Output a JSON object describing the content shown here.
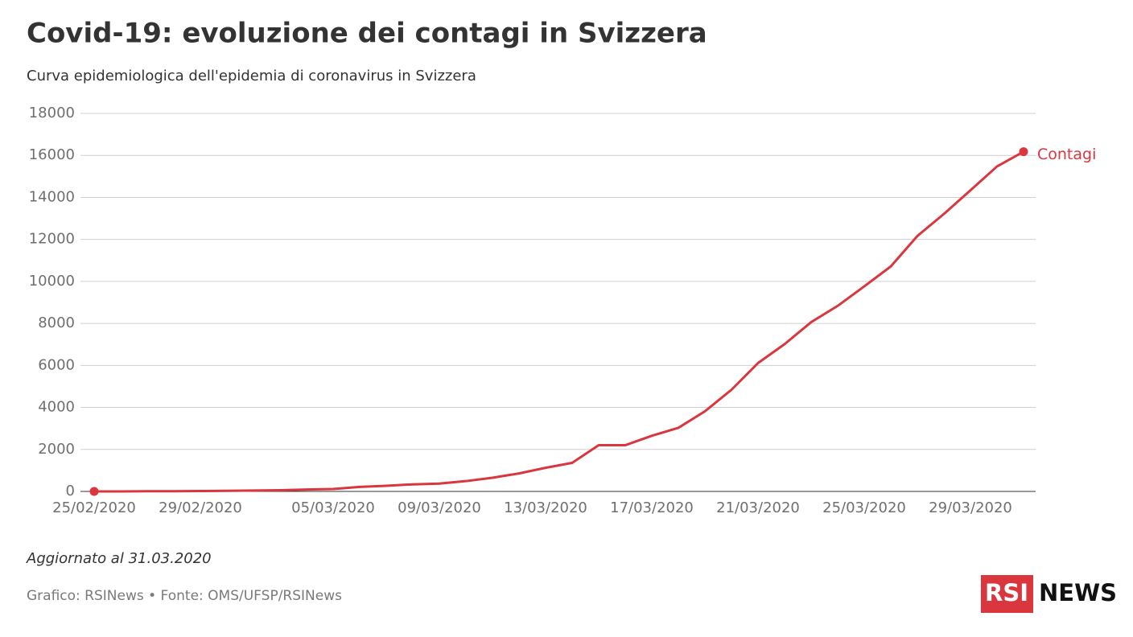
{
  "chart_data": {
    "type": "line",
    "title": "Covid-19: evoluzione dei contagi in Svizzera",
    "subtitle": "Curva epidemiologica dell'epidemia di coronavirus in Svizzera",
    "categories": [
      "25/02/2020",
      null,
      null,
      null,
      "29/02/2020",
      null,
      null,
      null,
      null,
      "05/03/2020",
      null,
      null,
      null,
      "09/03/2020",
      null,
      null,
      null,
      "13/03/2020",
      null,
      null,
      null,
      "17/03/2020",
      null,
      null,
      null,
      "21/03/2020",
      null,
      null,
      null,
      "25/03/2020",
      null,
      null,
      null,
      "29/03/2020",
      null,
      null
    ],
    "series": [
      {
        "name": "Contagi",
        "color": "#d9363e",
        "values": [
          1,
          1,
          8,
          8,
          18,
          27,
          42,
          56,
          90,
          114,
          214,
          268,
          337,
          374,
          491,
          652,
          858,
          1125,
          1359,
          2200,
          2200,
          2650,
          3028,
          3815,
          4840,
          6113,
          7014,
          8060,
          8836,
          9765,
          10714,
          12161,
          13213,
          14336,
          15475,
          16176
        ]
      }
    ],
    "ylim": [
      0,
      18000
    ],
    "yticks": [
      0,
      2000,
      4000,
      6000,
      8000,
      10000,
      12000,
      14000,
      16000,
      18000
    ],
    "grid": true,
    "note": "Aggiornato al 31.03.2020",
    "source": "Grafico: RSINews • Fonte: OMS/UFSP/RSINews",
    "logo": {
      "left": "RSI",
      "right": "NEWS"
    }
  }
}
